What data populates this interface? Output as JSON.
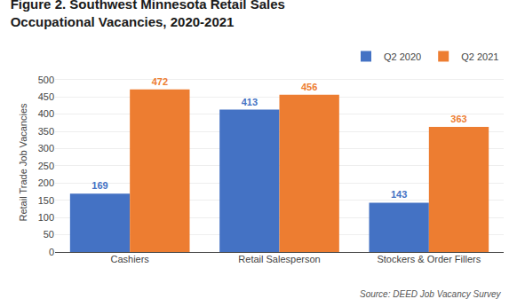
{
  "chart_data": {
    "type": "bar",
    "title": "Figure 2. Southwest Minnesota Retail Sales",
    "subtitle": "Occupational Vacancies, 2020-2021",
    "categories": [
      "Cashiers",
      "Retail Salesperson",
      "Stockers & Order Fillers"
    ],
    "series": [
      {
        "name": "Q2 2020",
        "color": "#4472C4",
        "values": [
          169,
          413,
          143
        ]
      },
      {
        "name": "Q2 2021",
        "color": "#ED7D31",
        "values": [
          472,
          456,
          363
        ]
      }
    ],
    "ylabel": "Retail Trade Job Vacancies",
    "ylim": [
      0,
      520
    ],
    "yticks": [
      0,
      50,
      100,
      150,
      200,
      250,
      300,
      350,
      400,
      450,
      500
    ],
    "grid": true,
    "legend": "upper right",
    "data_labels": true,
    "annotations": [
      "Source: DEED Job Vacancy Survey"
    ]
  }
}
